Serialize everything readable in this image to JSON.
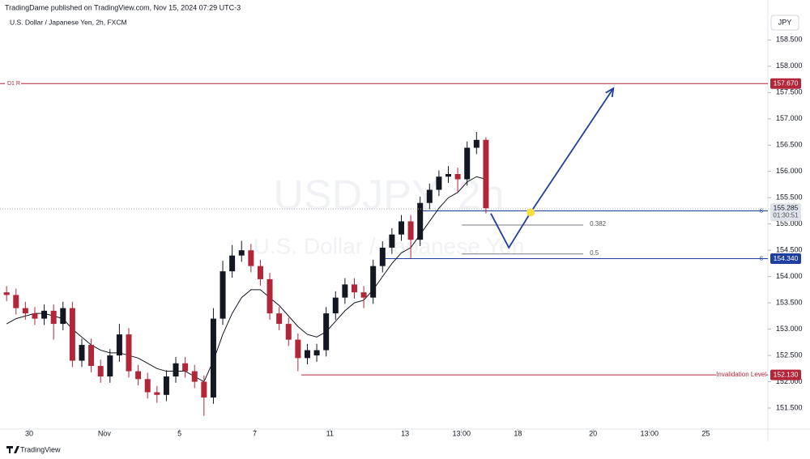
{
  "header": {
    "publisher": "TradingDame published on TradingView.com, Nov 15, 2024 07:29 UTC-3",
    "symbol": "U.S. Dollar / Japanese Yen, 2h, FXCM"
  },
  "currency_button": "JPY",
  "watermark": {
    "symbol": "USDJPY, 2h",
    "name": "U.S. Dollar / Japanese Yen"
  },
  "footer": "TradingView",
  "chart_data": {
    "type": "candlestick",
    "x": [
      -0.6,
      -0.35,
      -0.1,
      0.15,
      0.4,
      0.65,
      0.9,
      1.15,
      1.4,
      1.65,
      1.9,
      2.15,
      2.4,
      2.65,
      2.9,
      3.15,
      3.4,
      3.65,
      3.9,
      4.15,
      4.4,
      4.65,
      4.9,
      5.15,
      5.4,
      5.65,
      5.9,
      6.15,
      6.4,
      6.65,
      6.9,
      7.15,
      7.4,
      7.65,
      7.9,
      8.15,
      8.4,
      8.65,
      8.9,
      9.15,
      9.4,
      9.65,
      9.9,
      10.15,
      10.4,
      10.65,
      10.9,
      11.15,
      11.4,
      11.65,
      11.9,
      12.15
    ],
    "open": [
      153.7,
      153.65,
      153.4,
      153.3,
      153.2,
      153.35,
      153.1,
      153.4,
      152.4,
      152.7,
      152.3,
      152.1,
      152.5,
      152.9,
      152.2,
      152.05,
      151.8,
      151.75,
      152.1,
      152.35,
      152.2,
      152.0,
      151.7,
      153.2,
      154.1,
      154.4,
      154.5,
      154.2,
      153.95,
      153.3,
      153.1,
      152.8,
      152.45,
      152.5,
      152.6,
      153.3,
      153.6,
      153.85,
      153.7,
      153.6,
      154.2,
      154.55,
      154.8,
      155.05,
      154.7,
      155.4,
      155.65,
      155.9,
      155.95,
      155.85,
      156.45,
      156.6
    ],
    "high": [
      153.82,
      153.77,
      153.52,
      153.42,
      153.47,
      153.47,
      153.52,
      153.52,
      152.82,
      152.82,
      152.42,
      152.62,
      153.1,
      153.02,
      152.32,
      152.17,
      151.92,
      152.22,
      152.47,
      152.47,
      152.32,
      152.12,
      153.4,
      154.3,
      154.6,
      154.68,
      154.62,
      154.32,
      154.07,
      153.42,
      153.22,
      152.92,
      152.72,
      152.72,
      153.42,
      153.72,
      153.97,
      153.97,
      153.82,
      154.32,
      154.67,
      154.92,
      155.17,
      155.17,
      155.52,
      155.77,
      156.02,
      156.1,
      156.07,
      156.57,
      156.75,
      156.65
    ],
    "low": [
      153.53,
      153.28,
      153.18,
      153.08,
      153.08,
      152.8,
      152.98,
      152.28,
      152.28,
      152.18,
      151.98,
      151.98,
      152.38,
      152.08,
      151.93,
      151.68,
      151.6,
      151.63,
      151.98,
      152.08,
      151.88,
      151.35,
      151.58,
      153.08,
      153.98,
      154.28,
      154.08,
      153.83,
      153.18,
      152.98,
      152.68,
      152.2,
      152.33,
      152.38,
      152.48,
      153.18,
      153.48,
      153.58,
      153.4,
      153.48,
      154.08,
      154.43,
      154.68,
      154.35,
      154.58,
      155.28,
      155.53,
      155.78,
      155.6,
      155.73,
      156.33,
      155.2
    ],
    "close": [
      153.65,
      153.4,
      153.3,
      153.2,
      153.35,
      153.1,
      153.4,
      152.4,
      152.7,
      152.3,
      152.1,
      152.5,
      152.9,
      152.2,
      152.05,
      151.8,
      151.75,
      152.1,
      152.35,
      152.2,
      152.0,
      151.7,
      153.2,
      154.1,
      154.4,
      154.5,
      154.2,
      153.95,
      153.3,
      153.1,
      152.8,
      152.45,
      152.6,
      152.6,
      153.3,
      153.6,
      153.85,
      153.7,
      153.6,
      154.2,
      154.55,
      154.8,
      155.05,
      154.7,
      155.4,
      155.65,
      155.9,
      155.95,
      155.85,
      156.45,
      156.6,
      155.3
    ],
    "up_color": "#131722",
    "down_color": "#b2263a",
    "ma": {
      "color": "#131722",
      "values": [
        153.1,
        153.2,
        153.25,
        153.3,
        153.3,
        153.25,
        153.2,
        153.0,
        152.85,
        152.7,
        152.6,
        152.55,
        152.55,
        152.5,
        152.45,
        152.35,
        152.25,
        152.2,
        152.2,
        152.2,
        152.1,
        152.0,
        152.4,
        152.9,
        153.3,
        153.6,
        153.75,
        153.75,
        153.6,
        153.45,
        153.25,
        153.05,
        152.9,
        152.85,
        152.95,
        153.15,
        153.35,
        153.5,
        153.55,
        153.75,
        154.0,
        154.25,
        154.45,
        154.55,
        154.8,
        155.05,
        155.3,
        155.5,
        155.6,
        155.8,
        155.9,
        155.85
      ]
    },
    "xlim": [
      -0.776,
      19.65
    ],
    "xticks": [
      {
        "value": 0,
        "label": "30"
      },
      {
        "value": 2,
        "label": "Nov"
      },
      {
        "value": 4,
        "label": "5"
      },
      {
        "value": 6,
        "label": "7"
      },
      {
        "value": 8,
        "label": "11"
      },
      {
        "value": 10,
        "label": "13"
      },
      {
        "value": 11.5,
        "label": "13:00"
      },
      {
        "value": 13,
        "label": "18"
      },
      {
        "value": 15,
        "label": "20"
      },
      {
        "value": 16.5,
        "label": "13:00"
      },
      {
        "value": 18,
        "label": "25"
      }
    ],
    "ylim": [
      151.1,
      159.26
    ],
    "yticks": [
      {
        "value": 151.5,
        "label": "151.500"
      },
      {
        "value": 152,
        "label": "152.000"
      },
      {
        "value": 152.5,
        "label": "152.500"
      },
      {
        "value": 153,
        "label": "153.000"
      },
      {
        "value": 153.5,
        "label": "153.500"
      },
      {
        "value": 154,
        "label": "154.000"
      },
      {
        "value": 154.5,
        "label": "154.500"
      },
      {
        "value": 155,
        "label": "155.000"
      },
      {
        "value": 155.5,
        "label": "155.500"
      },
      {
        "value": 156,
        "label": "156.000"
      },
      {
        "value": 156.5,
        "label": "156.500"
      },
      {
        "value": 157,
        "label": "157.000"
      },
      {
        "value": 157.5,
        "label": "157.500"
      },
      {
        "value": 158,
        "label": "158.000"
      },
      {
        "value": 158.5,
        "label": "158.500"
      }
    ],
    "levels": [
      {
        "label": "D1 R",
        "label_side": "left",
        "value": 157.67,
        "value_label": "157.670",
        "color": "#b2263a"
      },
      {
        "tag": "S",
        "value": 155.25,
        "value_label": "155.250",
        "color": "#1e3f9e",
        "start": 10.47
      },
      {
        "tag": "S",
        "value": 154.34,
        "value_label": "154.340",
        "color": "#1e3f9e",
        "start": 9.35
      },
      {
        "label": "Invalidation Level",
        "label_side": "right",
        "value": 152.13,
        "value_label": "152.130",
        "color": "#b2263a",
        "start": 7.24
      }
    ],
    "fib": [
      {
        "label": "0.382",
        "value": 154.98,
        "start": 11.51,
        "end": 14.74
      },
      {
        "label": "0.5",
        "value": 154.43,
        "start": 11.51,
        "end": 14.74
      }
    ],
    "current_price": {
      "value": 155.285,
      "label": "155.285",
      "countdown": "01:30:51"
    },
    "projection": {
      "color": "#1e3f9e",
      "x": [
        12.28,
        12.76,
        13.34,
        15.54
      ],
      "y": [
        155.2,
        154.55,
        155.22,
        157.58
      ]
    },
    "marker": {
      "x": 13.34,
      "y": 155.22,
      "color": "#f7e03c"
    }
  }
}
